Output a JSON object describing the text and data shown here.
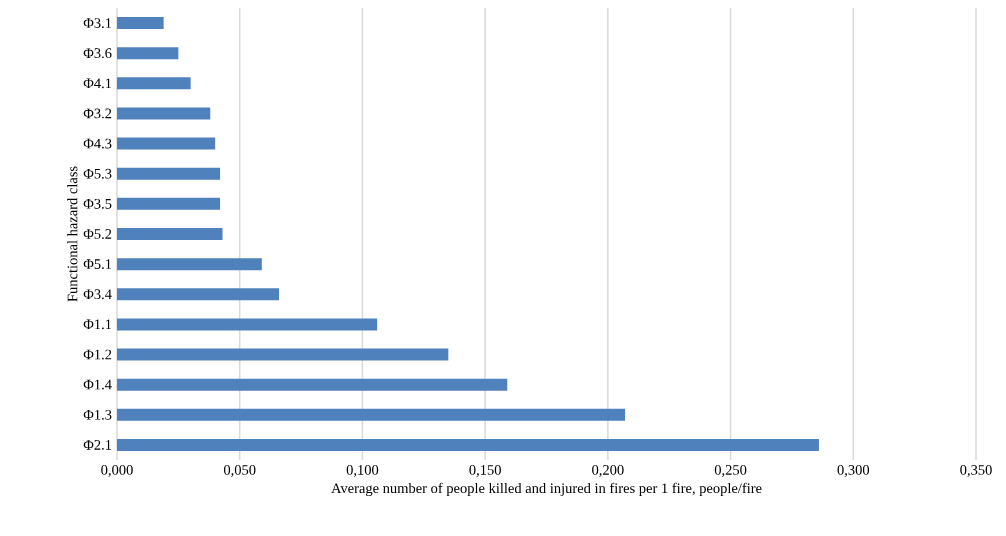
{
  "chart_data": {
    "type": "bar",
    "orientation": "horizontal",
    "xlabel": "Average number of people killed and injured in fires per 1 fire, people/fire",
    "ylabel": "Functional hazard class",
    "categories": [
      "Φ3.1",
      "Φ3.6",
      "Φ4.1",
      "Φ3.2",
      "Φ4.3",
      "Φ5.3",
      "Φ3.5",
      "Φ5.2",
      "Φ5.1",
      "Φ3.4",
      "Φ1.1",
      "Φ1.2",
      "Φ1.4",
      "Φ1.3",
      "Φ2.1"
    ],
    "values": [
      0.019,
      0.025,
      0.03,
      0.038,
      0.04,
      0.042,
      0.042,
      0.043,
      0.059,
      0.066,
      0.106,
      0.135,
      0.159,
      0.207,
      0.286
    ],
    "color": "#4f81bd",
    "xlim": [
      0,
      0.35
    ],
    "xticks": [
      {
        "value": 0,
        "label": "0,000"
      },
      {
        "value": 0.05,
        "label": "0,050"
      },
      {
        "value": 0.1,
        "label": "0,100"
      },
      {
        "value": 0.15,
        "label": "0,150"
      },
      {
        "value": 0.2,
        "label": "0,200"
      },
      {
        "value": 0.25,
        "label": "0,250"
      },
      {
        "value": 0.3,
        "label": "0,300"
      },
      {
        "value": 0.35,
        "label": "0,350"
      }
    ],
    "grid": "x"
  }
}
